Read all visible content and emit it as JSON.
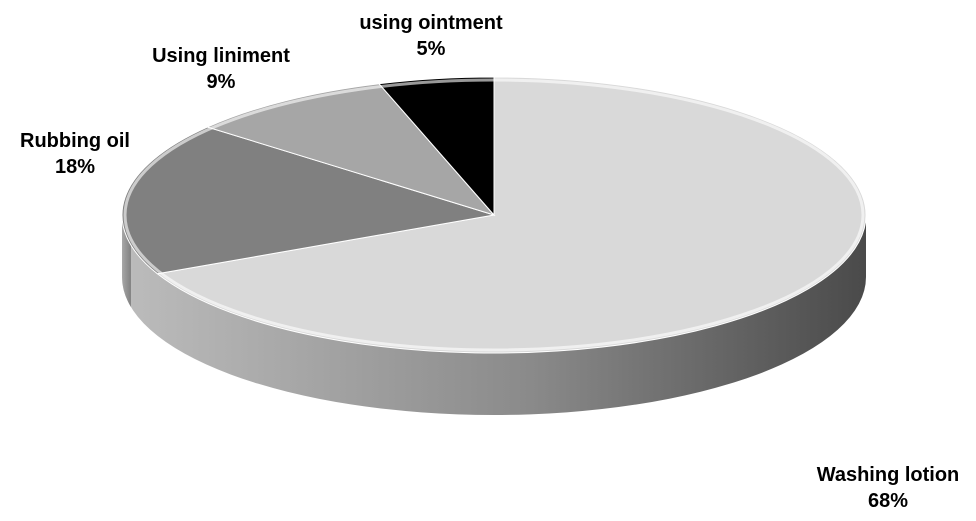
{
  "chart_data": {
    "type": "pie",
    "style": "3d",
    "title": "",
    "slices": [
      {
        "label": "Washing lotion",
        "value": 68,
        "value_text": "68%",
        "color": "#d9d9d9"
      },
      {
        "label": "Rubbing oil",
        "value": 18,
        "value_text": "18%",
        "color": "#808080"
      },
      {
        "label": "Using liniment",
        "value": 9,
        "value_text": "9%",
        "color": "#a6a6a6"
      },
      {
        "label": "using ointment",
        "value": 5,
        "value_text": "5%",
        "color": "#000000"
      }
    ],
    "legend": "none",
    "data_labels": "outside"
  }
}
